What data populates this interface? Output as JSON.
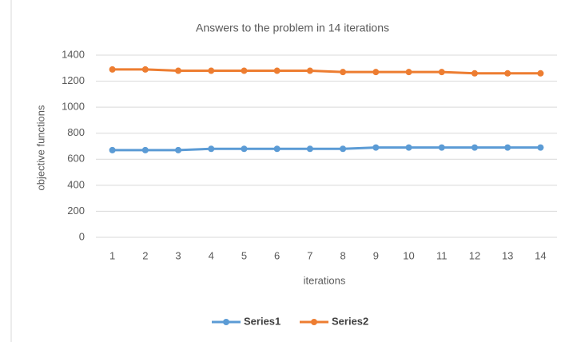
{
  "chart_data": {
    "type": "line",
    "title": "Answers to the problem in 14 iterations",
    "x_label": "iterations",
    "y_label": "objective functions",
    "categories": [
      "1",
      "2",
      "3",
      "4",
      "5",
      "6",
      "7",
      "8",
      "9",
      "10",
      "11",
      "12",
      "13",
      "14"
    ],
    "series": [
      {
        "name": "Series1",
        "color": "#5b9bd5",
        "values": [
          670,
          670,
          670,
          680,
          680,
          680,
          680,
          680,
          690,
          690,
          690,
          690,
          690,
          690
        ]
      },
      {
        "name": "Series2",
        "color": "#ed7d31",
        "values": [
          1290,
          1290,
          1280,
          1280,
          1280,
          1280,
          1280,
          1270,
          1270,
          1270,
          1270,
          1260,
          1260,
          1260
        ]
      }
    ],
    "ylim": [
      0,
      1400
    ],
    "yticks": [
      0,
      200,
      400,
      600,
      800,
      1000,
      1200,
      1400
    ],
    "grid": true,
    "legend": "bottom"
  }
}
